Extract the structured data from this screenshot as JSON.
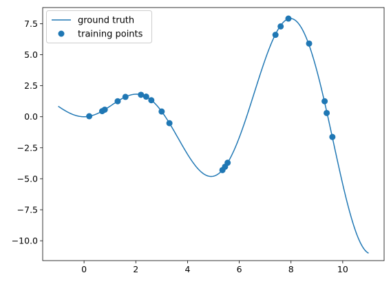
{
  "chart_data": {
    "type": "scatter",
    "title": "",
    "xlabel": "",
    "ylabel": "",
    "xlim": [
      -1.6,
      11.6
    ],
    "ylim": [
      -11.6,
      8.8
    ],
    "xticks": [
      0,
      2,
      4,
      6,
      8,
      10
    ],
    "xtick_labels": [
      "0",
      "2",
      "4",
      "6",
      "8",
      "10"
    ],
    "yticks": [
      7.5,
      5.0,
      2.5,
      0.0,
      -2.5,
      -5.0,
      -7.5,
      -10.0
    ],
    "ytick_labels": [
      "7.5",
      "5.0",
      "2.5",
      "0.0",
      "−2.5",
      "−5.0",
      "−7.5",
      "−10.0"
    ],
    "grid": false,
    "legend_position": "upper-left",
    "series": [
      {
        "name": "ground truth",
        "kind": "line",
        "function": "x*sin(x)",
        "x_range": [
          -1,
          11
        ],
        "color": "#1f77b4"
      },
      {
        "name": "training points",
        "kind": "scatter",
        "color": "#1f77b4",
        "points": [
          {
            "x": 0.2,
            "y": 0.04
          },
          {
            "x": 0.7,
            "y": 0.45
          },
          {
            "x": 0.8,
            "y": 0.57
          },
          {
            "x": 1.3,
            "y": 1.25
          },
          {
            "x": 1.6,
            "y": 1.6
          },
          {
            "x": 2.2,
            "y": 1.77
          },
          {
            "x": 2.4,
            "y": 1.62
          },
          {
            "x": 2.6,
            "y": 1.33
          },
          {
            "x": 3.0,
            "y": 0.42
          },
          {
            "x": 3.3,
            "y": -0.52
          },
          {
            "x": 5.35,
            "y": -4.3
          },
          {
            "x": 5.45,
            "y": -4.03
          },
          {
            "x": 5.55,
            "y": -3.71
          },
          {
            "x": 7.4,
            "y": 6.6
          },
          {
            "x": 7.6,
            "y": 7.28
          },
          {
            "x": 7.9,
            "y": 7.91
          },
          {
            "x": 8.7,
            "y": 5.9
          },
          {
            "x": 9.3,
            "y": 1.25
          },
          {
            "x": 9.38,
            "y": 0.3
          },
          {
            "x": 9.6,
            "y": -1.63
          }
        ]
      }
    ]
  }
}
